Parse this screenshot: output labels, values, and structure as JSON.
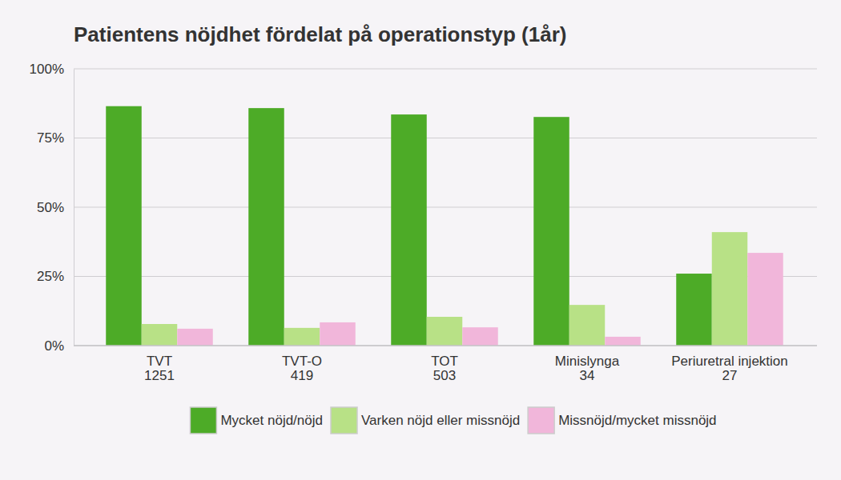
{
  "chart_data": {
    "type": "bar",
    "title": "Patientens nöjdhet fördelat på operationstyp (1år)",
    "categories": [
      "TVT",
      "TVT-O",
      "TOT",
      "Minislynga",
      "Periuretral injektion"
    ],
    "n": [
      1251,
      419,
      503,
      34,
      27
    ],
    "series": [
      {
        "name": "Mycket nöjd/nöjd",
        "color": "#4dab27",
        "values": [
          86.5,
          85.8,
          83.5,
          82.6,
          26
        ]
      },
      {
        "name": "Varken nöjd eller missnöjd",
        "color": "#b8e186",
        "values": [
          7.8,
          6.4,
          10.4,
          14.7,
          41
        ]
      },
      {
        "name": "Missnöjd/mycket missnöjd",
        "color": "#f1b6da",
        "values": [
          6.1,
          8.4,
          6.6,
          3.2,
          33.5
        ]
      }
    ],
    "ylim": [
      0,
      100
    ],
    "yticks": [
      {
        "value": 0,
        "label": "0%"
      },
      {
        "value": 25,
        "label": "25%"
      },
      {
        "value": 50,
        "label": "50%"
      },
      {
        "value": 75,
        "label": "75%"
      },
      {
        "value": 100,
        "label": "100%"
      }
    ],
    "grid": true,
    "legend": "bottom"
  }
}
